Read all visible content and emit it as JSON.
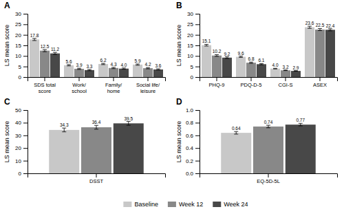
{
  "chart_data": [
    {
      "type": "bar",
      "title": "A",
      "ylabel": "LS mean score",
      "categories": [
        "SDS total\nscore",
        "Work/\nschool",
        "Family/\nhome",
        "Social life/\nleisure"
      ],
      "series": [
        {
          "name": "Baseline",
          "color": "#c8c8c8",
          "values": [
            17.8,
            5.6,
            6.2,
            5.9
          ],
          "errors": [
            0.5,
            0.3,
            0.3,
            0.3
          ]
        },
        {
          "name": "Week 12",
          "color": "#888888",
          "values": [
            12.5,
            3.9,
            4.3,
            4.2
          ],
          "errors": [
            0.5,
            0.3,
            0.3,
            0.3
          ]
        },
        {
          "name": "Week 24",
          "color": "#484848",
          "values": [
            11.2,
            3.3,
            4.0,
            3.6
          ],
          "value_labels": [
            "11.2",
            "3.3",
            "4.0",
            "3.6"
          ],
          "errors": [
            0.5,
            0.3,
            0.3,
            0.3
          ]
        }
      ],
      "ylim": [
        0,
        30
      ],
      "yticks": [
        0,
        5,
        10,
        15,
        20,
        25,
        30
      ],
      "data_labels": true,
      "legend": "bottom"
    },
    {
      "type": "bar",
      "title": "B",
      "ylabel": "LS mean score",
      "categories": [
        "PHQ-9",
        "PDQ-D-5",
        "CGI-S",
        "ASEX"
      ],
      "series": [
        {
          "name": "Baseline",
          "color": "#c8c8c8",
          "values": [
            15.1,
            9.6,
            4.0,
            23.6
          ],
          "value_labels": [
            "15.1",
            "9.6",
            "4.0",
            "23.6"
          ],
          "errors": [
            0.4,
            0.3,
            0.15,
            0.5
          ]
        },
        {
          "name": "Week 12",
          "color": "#888888",
          "values": [
            10.2,
            6.8,
            3.2,
            22.5
          ],
          "errors": [
            0.4,
            0.3,
            0.15,
            0.5
          ]
        },
        {
          "name": "Week 24",
          "color": "#484848",
          "values": [
            9.2,
            6.1,
            2.9,
            22.4
          ],
          "errors": [
            0.4,
            0.3,
            0.15,
            0.5
          ]
        }
      ],
      "ylim": [
        0,
        30
      ],
      "yticks": [
        0,
        5,
        10,
        15,
        20,
        25,
        30
      ],
      "data_labels": true
    },
    {
      "type": "bar",
      "title": "C",
      "ylabel": "LS mean score",
      "categories": [
        "DSST"
      ],
      "series": [
        {
          "name": "Baseline",
          "color": "#c8c8c8",
          "values": [
            34.3
          ],
          "errors": [
            1.5
          ]
        },
        {
          "name": "Week 12",
          "color": "#888888",
          "values": [
            36.4
          ],
          "errors": [
            1.5
          ]
        },
        {
          "name": "Week 24",
          "color": "#484848",
          "values": [
            39.5
          ],
          "errors": [
            1.5
          ]
        }
      ],
      "ylim": [
        0,
        50
      ],
      "yticks": [
        0,
        10,
        20,
        30,
        40,
        50
      ],
      "data_labels": true
    },
    {
      "type": "bar",
      "title": "D",
      "ylabel": "LS mean score",
      "categories": [
        "EQ-5D-5L"
      ],
      "series": [
        {
          "name": "Baseline",
          "color": "#c8c8c8",
          "values": [
            0.64
          ],
          "errors": [
            0.02
          ]
        },
        {
          "name": "Week 12",
          "color": "#888888",
          "values": [
            0.74
          ],
          "errors": [
            0.02
          ]
        },
        {
          "name": "Week 24",
          "color": "#484848",
          "values": [
            0.77
          ],
          "errors": [
            0.02
          ]
        }
      ],
      "ylim": [
        0,
        1
      ],
      "yticks": [
        {
          "value": 0,
          "label": "0.0"
        },
        0.2,
        0.4,
        0.6,
        0.8,
        {
          "value": 1,
          "label": "1.0"
        }
      ],
      "data_labels": true
    }
  ]
}
